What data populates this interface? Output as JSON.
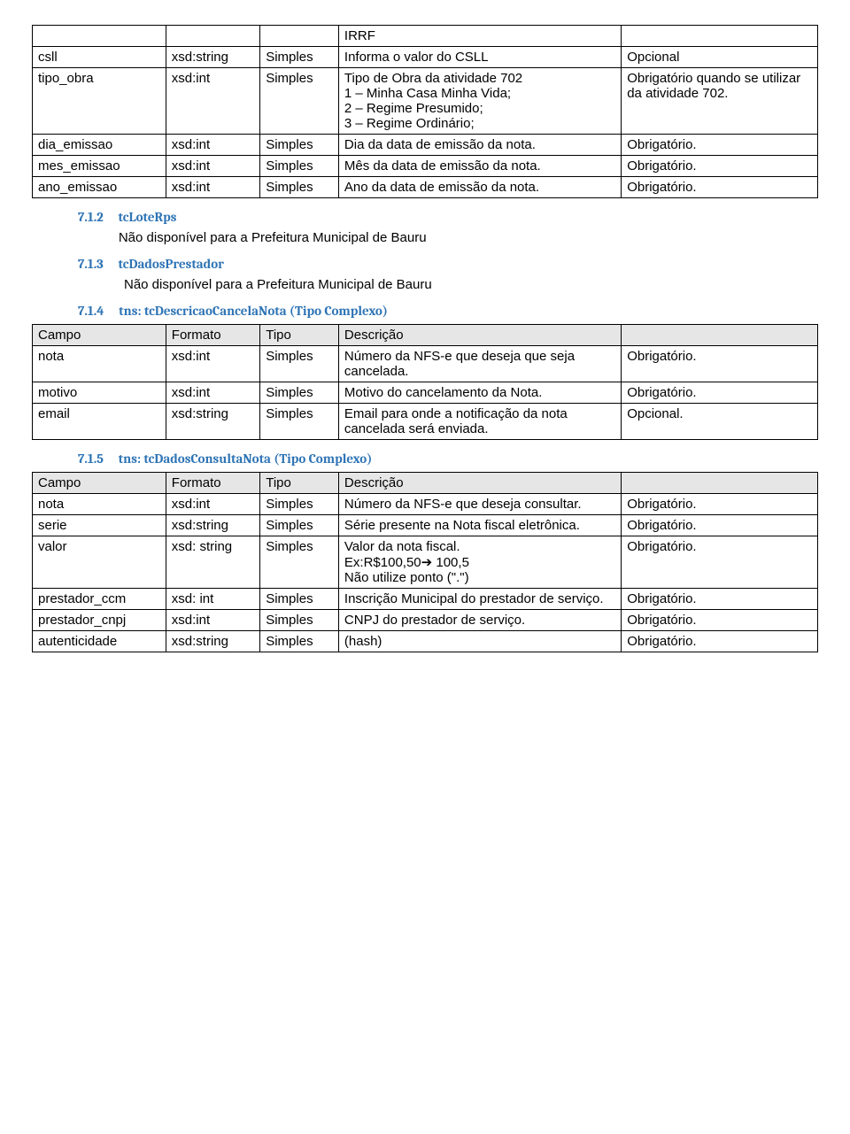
{
  "table1": {
    "rows": [
      {
        "campo": "",
        "formato": "",
        "tipo": "",
        "desc": "IRRF",
        "req": ""
      },
      {
        "campo": "csll",
        "formato": "xsd:string",
        "tipo": "Simples",
        "desc": "Informa o valor do CSLL",
        "req": "Opcional"
      },
      {
        "campo": "tipo_obra",
        "formato": "xsd:int",
        "tipo": "Simples",
        "desc": "Tipo de Obra da atividade 702\n1 – Minha Casa Minha Vida;\n2 – Regime Presumido;\n3 – Regime Ordinário;",
        "req": "Obrigatório quando se utilizar da atividade 702."
      },
      {
        "campo": "dia_emissao",
        "formato": "xsd:int",
        "tipo": "Simples",
        "desc": "Dia da data de emissão da nota.",
        "req": "Obrigatório."
      },
      {
        "campo": "mes_emissao",
        "formato": "xsd:int",
        "tipo": "Simples",
        "desc": "Mês da data de emissão da nota.",
        "req": "Obrigatório."
      },
      {
        "campo": "ano_emissao",
        "formato": "xsd:int",
        "tipo": "Simples",
        "desc": "Ano da data de emissão da nota.",
        "req": "Obrigatório."
      }
    ]
  },
  "sec712": {
    "num": "7.1.2",
    "title": "tcLoteRps",
    "body": "Não disponível para a Prefeitura Municipal de Bauru"
  },
  "sec713": {
    "num": "7.1.3",
    "title": "tcDadosPrestador",
    "body": "Não disponível para a Prefeitura Municipal de Bauru"
  },
  "sec714": {
    "num": "7.1.4",
    "title": "tns: tcDescricaoCancelaNota (Tipo Complexo)"
  },
  "table2": {
    "headers": {
      "campo": "Campo",
      "formato": "Formato",
      "tipo": "Tipo",
      "desc": "Descrição",
      "req": ""
    },
    "rows": [
      {
        "campo": "nota",
        "formato": "xsd:int",
        "tipo": "Simples",
        "desc": "Número da NFS-e que deseja que seja cancelada.",
        "req": "Obrigatório."
      },
      {
        "campo": "motivo",
        "formato": "xsd:int",
        "tipo": "Simples",
        "desc": "Motivo do cancelamento da Nota.",
        "req": "Obrigatório."
      },
      {
        "campo": "email",
        "formato": "xsd:string",
        "tipo": "Simples",
        "desc": "Email para onde a notificação  da nota cancelada será enviada.",
        "req": "Opcional."
      }
    ]
  },
  "sec715": {
    "num": "7.1.5",
    "title": "tns: tcDadosConsultaNota (Tipo Complexo)"
  },
  "table3": {
    "headers": {
      "campo": "Campo",
      "formato": "Formato",
      "tipo": "Tipo",
      "desc": "Descrição",
      "req": ""
    },
    "rows": [
      {
        "campo": "nota",
        "formato": "xsd:int",
        "tipo": "Simples",
        "desc": "Número da NFS-e que deseja consultar.",
        "req": "Obrigatório."
      },
      {
        "campo": "serie",
        "formato": "xsd:string",
        "tipo": "Simples",
        "desc": "Série presente na Nota fiscal eletrônica.",
        "req": "Obrigatório."
      },
      {
        "campo": "valor",
        "formato": "xsd: string",
        "tipo": "Simples",
        "desc": "Valor da nota fiscal.\nEx:R$100,50➔ 100,5\nNão utilize ponto (\".\")",
        "req": "Obrigatório."
      },
      {
        "campo": "prestador_ccm",
        "formato": "xsd: int",
        "tipo": "Simples",
        "desc": "Inscrição Municipal do prestador de serviço.",
        "req": "Obrigatório."
      },
      {
        "campo": "prestador_cnpj",
        "formato": "xsd:int",
        "tipo": "Simples",
        "desc": "CNPJ do prestador de serviço.",
        "req": "Obrigatório."
      },
      {
        "campo": "autenticidade",
        "formato": "xsd:string",
        "tipo": "Simples",
        "desc": "(hash)",
        "req": "Obrigatório."
      }
    ]
  }
}
